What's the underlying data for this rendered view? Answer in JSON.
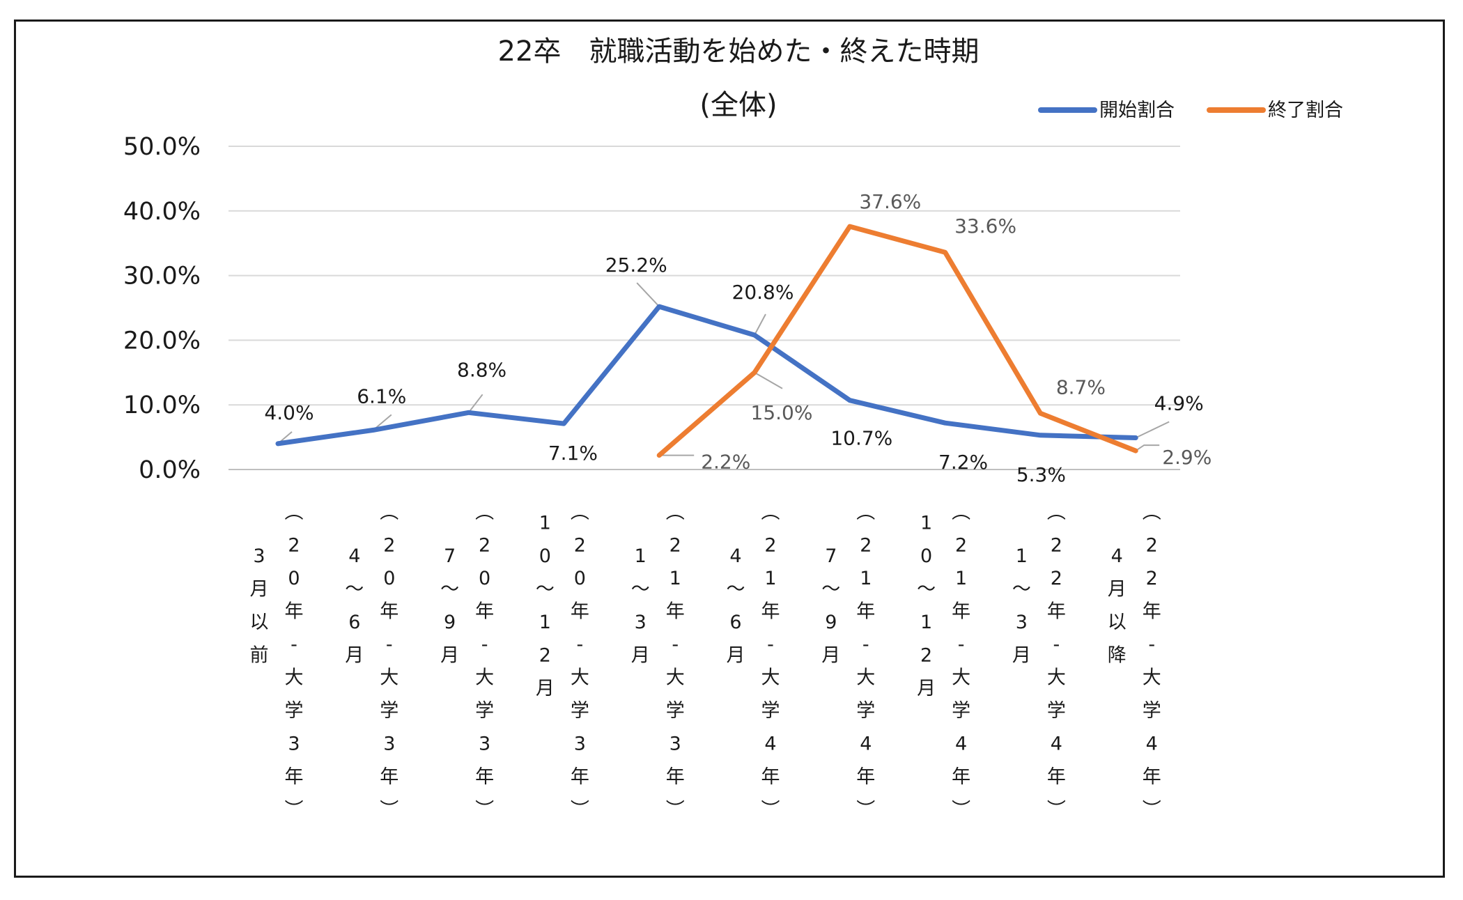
{
  "chart_data": {
    "type": "line",
    "title": "22卒　就職活動を始めた・終えた時期",
    "subtitle": "(全体)",
    "legend_position": "top-right",
    "grid": true,
    "ylim": [
      0,
      50
    ],
    "yticks": [
      "0.0%",
      "10.0%",
      "20.0%",
      "30.0%",
      "40.0%",
      "50.0%"
    ],
    "categories": [
      "3月以前（20年-大学3年）",
      "4〜6月（20年-大学3年）",
      "7〜9月（20年-大学3年）",
      "10〜12月（20年-大学3年）",
      "1〜3月（21年-大学3年）",
      "4〜6月（21年-大学4年）",
      "7〜9月（21年-大学4年）",
      "10〜12月（21年-大学4年）",
      "1〜3月（22年-大学4年）",
      "4月以降（22年-大学4年）"
    ],
    "category_lines": [
      {
        "left": [
          "3",
          "月",
          "以",
          "前"
        ],
        "right": [
          "︵",
          "2",
          "0",
          "年",
          "-",
          "大",
          "学",
          "3",
          "年",
          "︶"
        ]
      },
      {
        "left": [
          "4",
          "〜",
          "6",
          "月"
        ],
        "right": [
          "︵",
          "2",
          "0",
          "年",
          "-",
          "大",
          "学",
          "3",
          "年",
          "︶"
        ]
      },
      {
        "left": [
          "7",
          "〜",
          "9",
          "月"
        ],
        "right": [
          "︵",
          "2",
          "0",
          "年",
          "-",
          "大",
          "学",
          "3",
          "年",
          "︶"
        ]
      },
      {
        "left": [
          "1",
          "0",
          "〜",
          "1",
          "2",
          "月"
        ],
        "right": [
          "︵",
          "2",
          "0",
          "年",
          "-",
          "大",
          "学",
          "3",
          "年",
          "︶"
        ]
      },
      {
        "left": [
          "1",
          "〜",
          "3",
          "月"
        ],
        "right": [
          "︵",
          "2",
          "1",
          "年",
          "-",
          "大",
          "学",
          "3",
          "年",
          "︶"
        ]
      },
      {
        "left": [
          "4",
          "〜",
          "6",
          "月"
        ],
        "right": [
          "︵",
          "2",
          "1",
          "年",
          "-",
          "大",
          "学",
          "4",
          "年",
          "︶"
        ]
      },
      {
        "left": [
          "7",
          "〜",
          "9",
          "月"
        ],
        "right": [
          "︵",
          "2",
          "1",
          "年",
          "-",
          "大",
          "学",
          "4",
          "年",
          "︶"
        ]
      },
      {
        "left": [
          "1",
          "0",
          "〜",
          "1",
          "2",
          "月"
        ],
        "right": [
          "︵",
          "2",
          "1",
          "年",
          "-",
          "大",
          "学",
          "4",
          "年",
          "︶"
        ]
      },
      {
        "left": [
          "1",
          "〜",
          "3",
          "月"
        ],
        "right": [
          "︵",
          "2",
          "2",
          "年",
          "-",
          "大",
          "学",
          "4",
          "年",
          "︶"
        ]
      },
      {
        "left": [
          "4",
          "月",
          "以",
          "降"
        ],
        "right": [
          "︵",
          "2",
          "2",
          "年",
          "-",
          "大",
          "学",
          "4",
          "年",
          "︶"
        ]
      }
    ],
    "series": [
      {
        "name": "開始割合",
        "color": "#4472C4",
        "values": [
          4.0,
          6.1,
          8.8,
          7.1,
          25.2,
          20.8,
          10.7,
          7.2,
          5.3,
          4.9
        ],
        "labels": [
          "4.0%",
          "6.1%",
          "8.8%",
          "7.1%",
          "25.2%",
          "20.8%",
          "10.7%",
          "7.2%",
          "5.3%",
          "4.9%"
        ]
      },
      {
        "name": "終了割合",
        "color": "#ED7D31",
        "values": [
          null,
          null,
          null,
          null,
          2.2,
          15.0,
          37.6,
          33.6,
          8.7,
          2.9
        ],
        "labels": [
          null,
          null,
          null,
          null,
          "2.2%",
          "15.0%",
          "37.6%",
          "33.6%",
          "8.7%",
          "2.9%"
        ]
      }
    ]
  }
}
